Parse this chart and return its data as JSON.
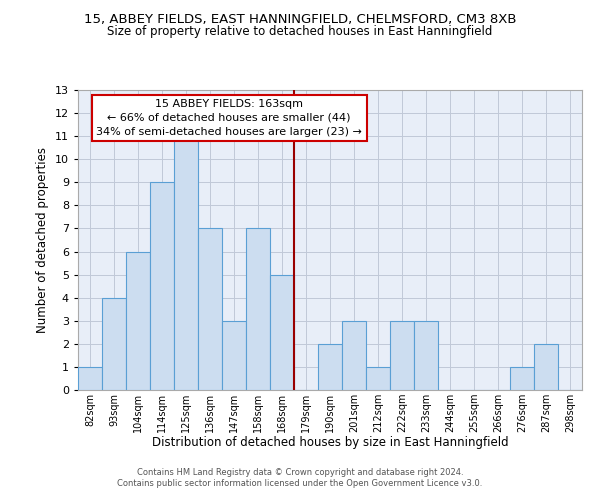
{
  "title_line1": "15, ABBEY FIELDS, EAST HANNINGFIELD, CHELMSFORD, CM3 8XB",
  "title_line2": "Size of property relative to detached houses in East Hanningfield",
  "xlabel": "Distribution of detached houses by size in East Hanningfield",
  "ylabel": "Number of detached properties",
  "bin_labels": [
    "82sqm",
    "93sqm",
    "104sqm",
    "114sqm",
    "125sqm",
    "136sqm",
    "147sqm",
    "158sqm",
    "168sqm",
    "179sqm",
    "190sqm",
    "201sqm",
    "212sqm",
    "222sqm",
    "233sqm",
    "244sqm",
    "255sqm",
    "266sqm",
    "276sqm",
    "287sqm",
    "298sqm"
  ],
  "bar_heights": [
    1,
    4,
    6,
    9,
    11,
    7,
    3,
    7,
    5,
    0,
    2,
    3,
    1,
    3,
    3,
    0,
    0,
    0,
    1,
    2,
    0
  ],
  "bar_color": "#ccddf0",
  "bar_edge_color": "#5a9fd4",
  "vline_color": "#990000",
  "annotation_title": "15 ABBEY FIELDS: 163sqm",
  "annotation_line1": "← 66% of detached houses are smaller (44)",
  "annotation_line2": "34% of semi-detached houses are larger (23) →",
  "annotation_box_color": "#ffffff",
  "annotation_box_edge_color": "#cc0000",
  "ylim": [
    0,
    13
  ],
  "yticks": [
    0,
    1,
    2,
    3,
    4,
    5,
    6,
    7,
    8,
    9,
    10,
    11,
    12,
    13
  ],
  "footer1": "Contains HM Land Registry data © Crown copyright and database right 2024.",
  "footer2": "Contains public sector information licensed under the Open Government Licence v3.0.",
  "bg_color": "#e8eef8"
}
